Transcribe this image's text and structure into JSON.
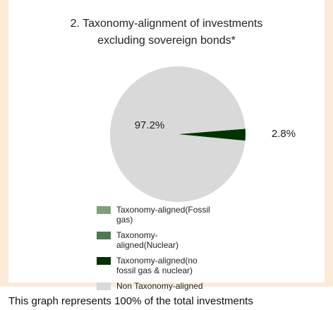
{
  "chart_data": {
    "type": "pie",
    "title": "2. Taxonomy-alignment of investments excluding sovereign bonds*",
    "categories": [
      "Taxonomy-aligned(Fossil gas)",
      "Taxonomy-aligned(Nuclear)",
      "Taxonomy-aligned(no fossil gas & nuclear)",
      "Non Taxonomy-aligned"
    ],
    "series": [
      {
        "name": "Taxonomy-alignment",
        "colors": [
          "#7f9f7f",
          "#4f7a4f",
          "#003300",
          "#d9d9d9"
        ],
        "values": [
          0,
          0,
          2.8,
          97.2
        ],
        "value_labels": [
          null,
          null,
          "2.8%",
          "97.2%"
        ]
      }
    ],
    "footnote": "This graph represents 100% of the total investments"
  }
}
